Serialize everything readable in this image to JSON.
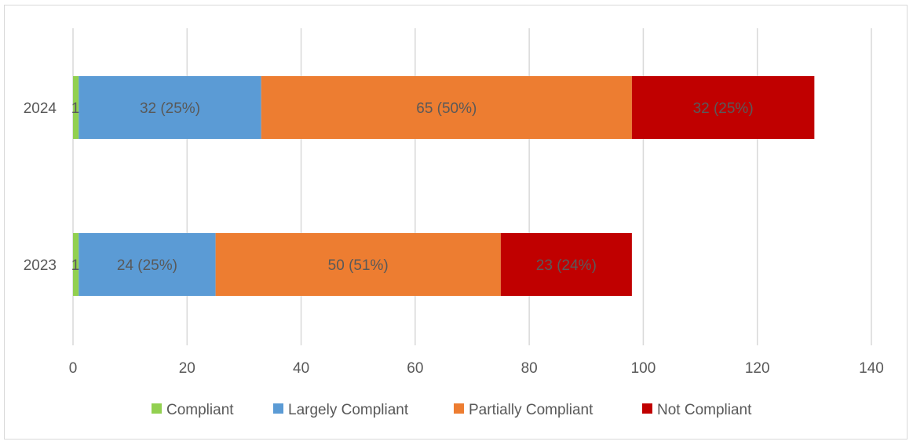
{
  "chart_data": {
    "type": "bar",
    "orientation": "horizontal",
    "stacked": true,
    "title": "",
    "xlabel": "",
    "ylabel": "",
    "categories": [
      "2024",
      "2023"
    ],
    "xlim": [
      0,
      140
    ],
    "x_ticks": [
      0,
      20,
      40,
      60,
      80,
      100,
      120,
      140
    ],
    "grid": "vertical",
    "legend_position": "bottom",
    "series": [
      {
        "name": "Compliant",
        "color": "#92d050",
        "values": [
          1,
          1
        ],
        "labels": [
          "1",
          "1"
        ]
      },
      {
        "name": "Largely Compliant",
        "color": "#5b9bd5",
        "values": [
          32,
          24
        ],
        "labels": [
          "32 (25%)",
          "24 (25%)"
        ]
      },
      {
        "name": "Partially Compliant",
        "color": "#ed7d31",
        "values": [
          65,
          50
        ],
        "labels": [
          "65 (50%)",
          "50 (51%)"
        ]
      },
      {
        "name": "Not Compliant",
        "color": "#c00000",
        "values": [
          32,
          23
        ],
        "labels": [
          "32 (25%)",
          "23 (24%)"
        ]
      }
    ]
  }
}
